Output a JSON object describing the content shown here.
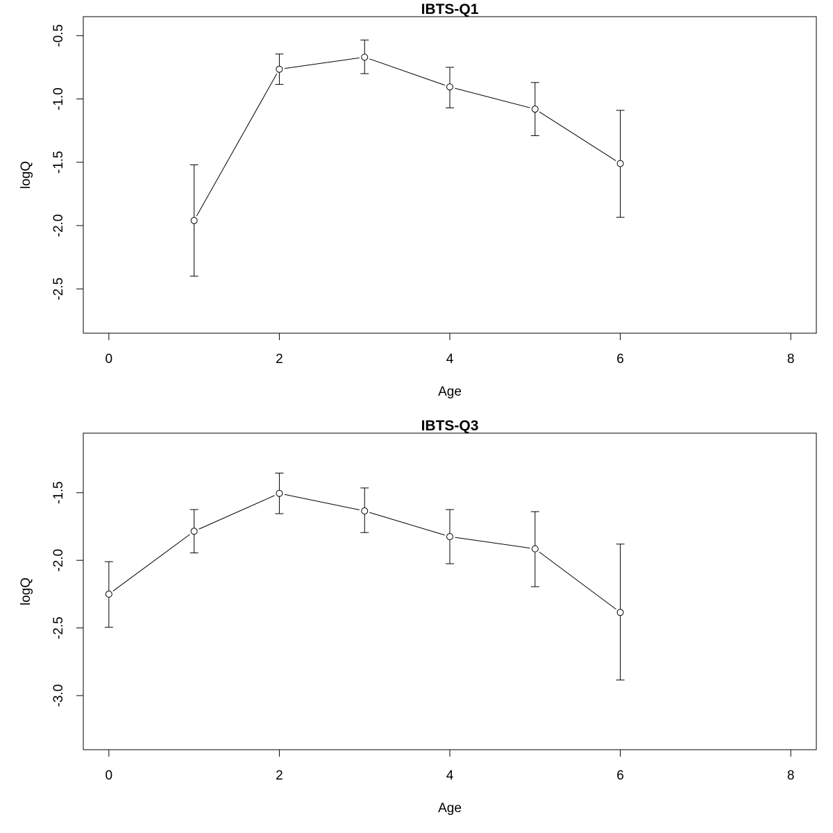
{
  "chart_data": [
    {
      "type": "line",
      "title": "IBTS-Q1",
      "xlabel": "Age",
      "ylabel": "logQ",
      "xlim": [
        -0.3,
        8.3
      ],
      "ylim": [
        -2.85,
        -0.35
      ],
      "xticks": [
        0,
        2,
        4,
        6,
        8
      ],
      "xtick_labels": [
        "0",
        "2",
        "4",
        "6",
        "8"
      ],
      "yticks": [
        -0.5,
        -1.0,
        -1.5,
        -2.0,
        -2.5
      ],
      "ytick_labels": [
        "-0.5",
        "-1.0",
        "-1.5",
        "-2.0",
        "-2.5"
      ],
      "grid": false,
      "series": [
        {
          "x": [
            1,
            2,
            3,
            4,
            5,
            6
          ],
          "y": [
            -1.96,
            -0.765,
            -0.67,
            -0.905,
            -1.08,
            -1.51
          ],
          "lower": [
            -2.4,
            -0.885,
            -0.8,
            -1.07,
            -1.29,
            -1.935
          ],
          "upper": [
            -1.52,
            -0.645,
            -0.535,
            -0.75,
            -0.87,
            -1.09
          ]
        }
      ]
    },
    {
      "type": "line",
      "title": "IBTS-Q3",
      "xlabel": "Age",
      "ylabel": "logQ",
      "xlim": [
        -0.3,
        8.3
      ],
      "ylim": [
        -3.4,
        -1.06
      ],
      "xticks": [
        0,
        2,
        4,
        6,
        8
      ],
      "xtick_labels": [
        "0",
        "2",
        "4",
        "6",
        "8"
      ],
      "yticks": [
        -1.5,
        -2.0,
        -2.5,
        -3.0
      ],
      "ytick_labels": [
        "-1.5",
        "-2.0",
        "-2.5",
        "-3.0"
      ],
      "grid": false,
      "series": [
        {
          "x": [
            0,
            1,
            2,
            3,
            4,
            5,
            6
          ],
          "y": [
            -2.25,
            -1.785,
            -1.505,
            -1.635,
            -1.825,
            -1.915,
            -2.385
          ],
          "lower": [
            -2.495,
            -1.945,
            -1.655,
            -1.795,
            -2.025,
            -2.195,
            -2.885
          ],
          "upper": [
            -2.01,
            -1.625,
            -1.355,
            -1.465,
            -1.625,
            -1.64,
            -1.88
          ]
        }
      ]
    }
  ]
}
